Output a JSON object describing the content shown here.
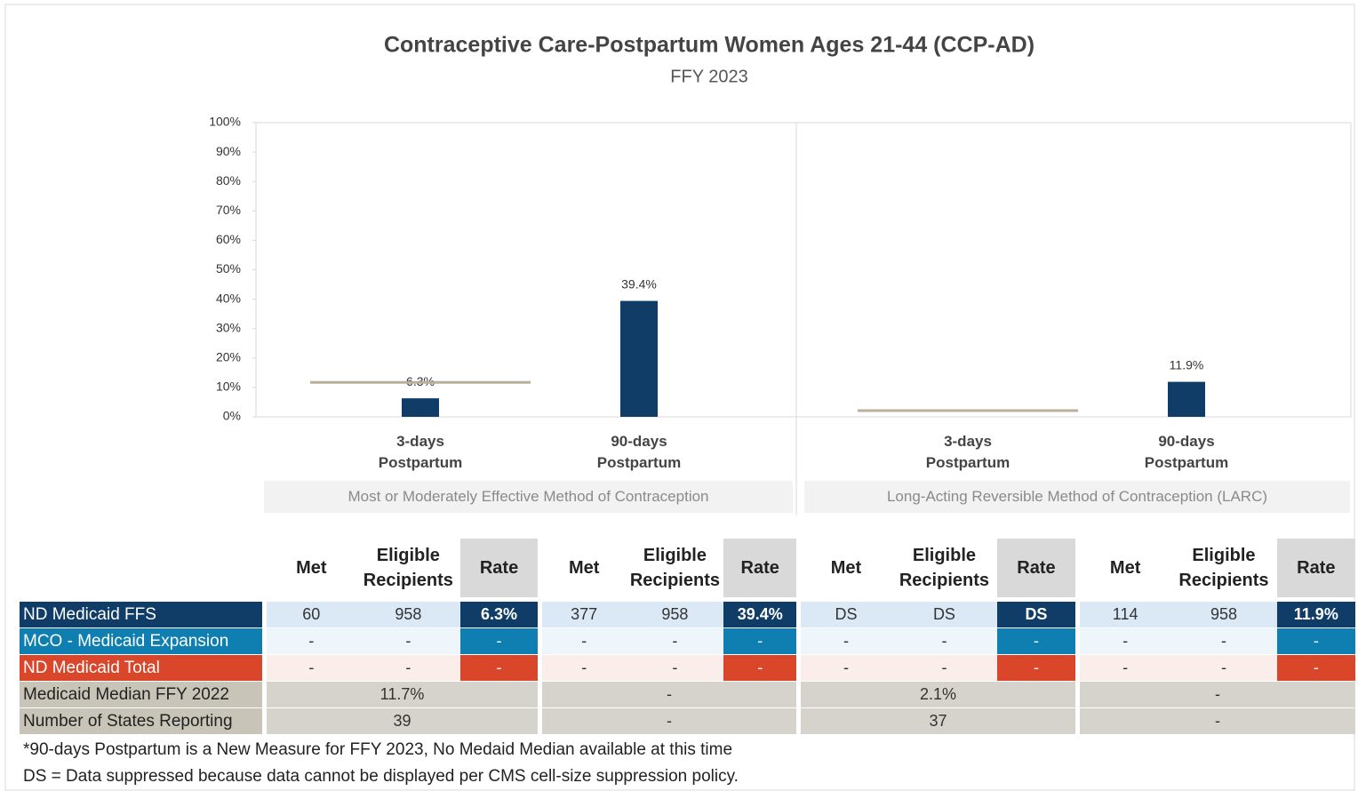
{
  "chart_data": {
    "type": "bar",
    "title": "Contraceptive Care-Postpartum Women Ages 21-44 (CCP-AD)",
    "subtitle": "FFY 2023",
    "groups": [
      "Most or Moderately Effective Method of Contraception",
      "Long-Acting Reversible Method of Contraception (LARC)"
    ],
    "categories": [
      "3-days Postpartum",
      "90-days Postpartum",
      "3-days Postpartum",
      "90-days Postpartum"
    ],
    "values": [
      6.3,
      39.4,
      null,
      11.9
    ],
    "value_labels": [
      "6.3%",
      "39.4%",
      null,
      "11.9%"
    ],
    "color": "#0f3d68",
    "median_values": [
      11.7,
      null,
      2.1,
      null
    ],
    "median_color": "#b8b09c",
    "ylim": [
      0,
      100
    ],
    "yticks": [
      {
        "value": 0,
        "label": "0%"
      },
      {
        "value": 10,
        "label": "10%"
      },
      {
        "value": 20,
        "label": "20%"
      },
      {
        "value": 30,
        "label": "30%"
      },
      {
        "value": 40,
        "label": "40%"
      },
      {
        "value": 50,
        "label": "50%"
      },
      {
        "value": 60,
        "label": "60%"
      },
      {
        "value": 70,
        "label": "70%"
      },
      {
        "value": 80,
        "label": "80%"
      },
      {
        "value": 90,
        "label": "90%"
      },
      {
        "value": 100,
        "label": "100%"
      }
    ]
  },
  "table": {
    "headers": [
      "Met",
      "Eligible Recipients",
      "Rate",
      "Met",
      "Eligible Recipients",
      "Rate",
      "Met",
      "Eligible Recipients",
      "Rate",
      "Met",
      "Eligible Recipients",
      "Rate"
    ],
    "rows": [
      {
        "label": "ND Medicaid FFS",
        "cells": [
          60,
          958,
          "6.3%",
          377,
          958,
          "39.4%",
          "DS",
          "DS",
          "DS",
          114,
          958,
          "11.9%"
        ]
      },
      {
        "label": "MCO - Medicaid Expansion",
        "cells": [
          "-",
          "-",
          "-",
          "-",
          "-",
          "-",
          "-",
          "-",
          "-",
          "-",
          "-",
          "-"
        ]
      },
      {
        "label": "ND Medicaid Total",
        "cells": [
          "-",
          "-",
          "-",
          "-",
          "-",
          "-",
          "-",
          "-",
          "-",
          "-",
          "-",
          "-"
        ]
      },
      {
        "label": "Medicaid Median FFY 2022",
        "cells": [
          "11.7%",
          "-",
          "2.1%",
          "-"
        ]
      },
      {
        "label": "Number of States Reporting",
        "cells": [
          39,
          "-",
          37,
          "-"
        ]
      }
    ]
  },
  "notes": [
    "*90-days Postpartum is a New Measure for FFY 2023, No Medaid Median available at this time",
    "DS = Data suppressed because data cannot be displayed per CMS cell-size suppression policy."
  ]
}
